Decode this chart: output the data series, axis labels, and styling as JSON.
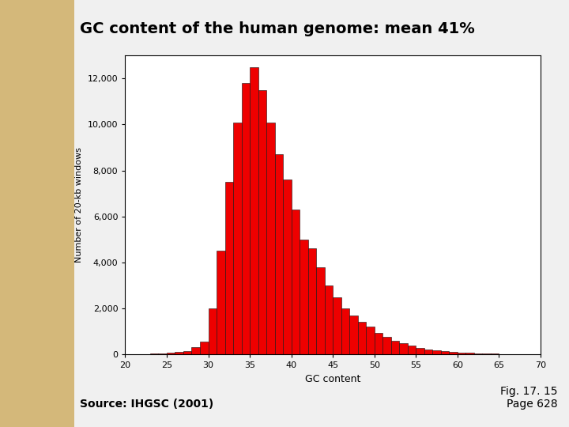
{
  "title": "GC content of the human genome: mean 41%",
  "xlabel": "GC content",
  "ylabel": "Number of 20-kb windows",
  "source_text": "Source: IHGSC (2001)",
  "fig_text": "Fig. 17. 15\nPage 628",
  "bar_color": "#ee0000",
  "bar_edge_color": "#111111",
  "background_color": "#ffffff",
  "slide_background": "#f0f0f0",
  "left_strip_color": "#d4b87a",
  "xlim": [
    20,
    70
  ],
  "ylim": [
    0,
    13000
  ],
  "xticks": [
    20,
    25,
    30,
    35,
    40,
    45,
    50,
    55,
    60,
    65,
    70
  ],
  "yticks": [
    0,
    2000,
    4000,
    6000,
    8000,
    10000,
    12000
  ],
  "ytick_labels": [
    "0",
    "2,000",
    "4,000",
    "6,000",
    "8,000",
    "10,000",
    "12,000"
  ],
  "bin_edges": [
    20,
    21,
    22,
    23,
    24,
    25,
    26,
    27,
    28,
    29,
    30,
    31,
    32,
    33,
    34,
    35,
    36,
    37,
    38,
    39,
    40,
    41,
    42,
    43,
    44,
    45,
    46,
    47,
    48,
    49,
    50,
    51,
    52,
    53,
    54,
    55,
    56,
    57,
    58,
    59,
    60,
    61,
    62,
    63,
    64,
    65,
    66,
    67,
    68,
    69,
    70
  ],
  "bar_heights": [
    5,
    10,
    15,
    25,
    40,
    60,
    100,
    160,
    300,
    550,
    2000,
    4500,
    7500,
    10100,
    11800,
    12500,
    11500,
    10100,
    8700,
    7600,
    6300,
    5000,
    4600,
    3800,
    3000,
    2500,
    2000,
    1700,
    1400,
    1200,
    950,
    750,
    600,
    480,
    380,
    290,
    230,
    180,
    140,
    110,
    85,
    65,
    50,
    38,
    28,
    18,
    12,
    8,
    4,
    2
  ]
}
